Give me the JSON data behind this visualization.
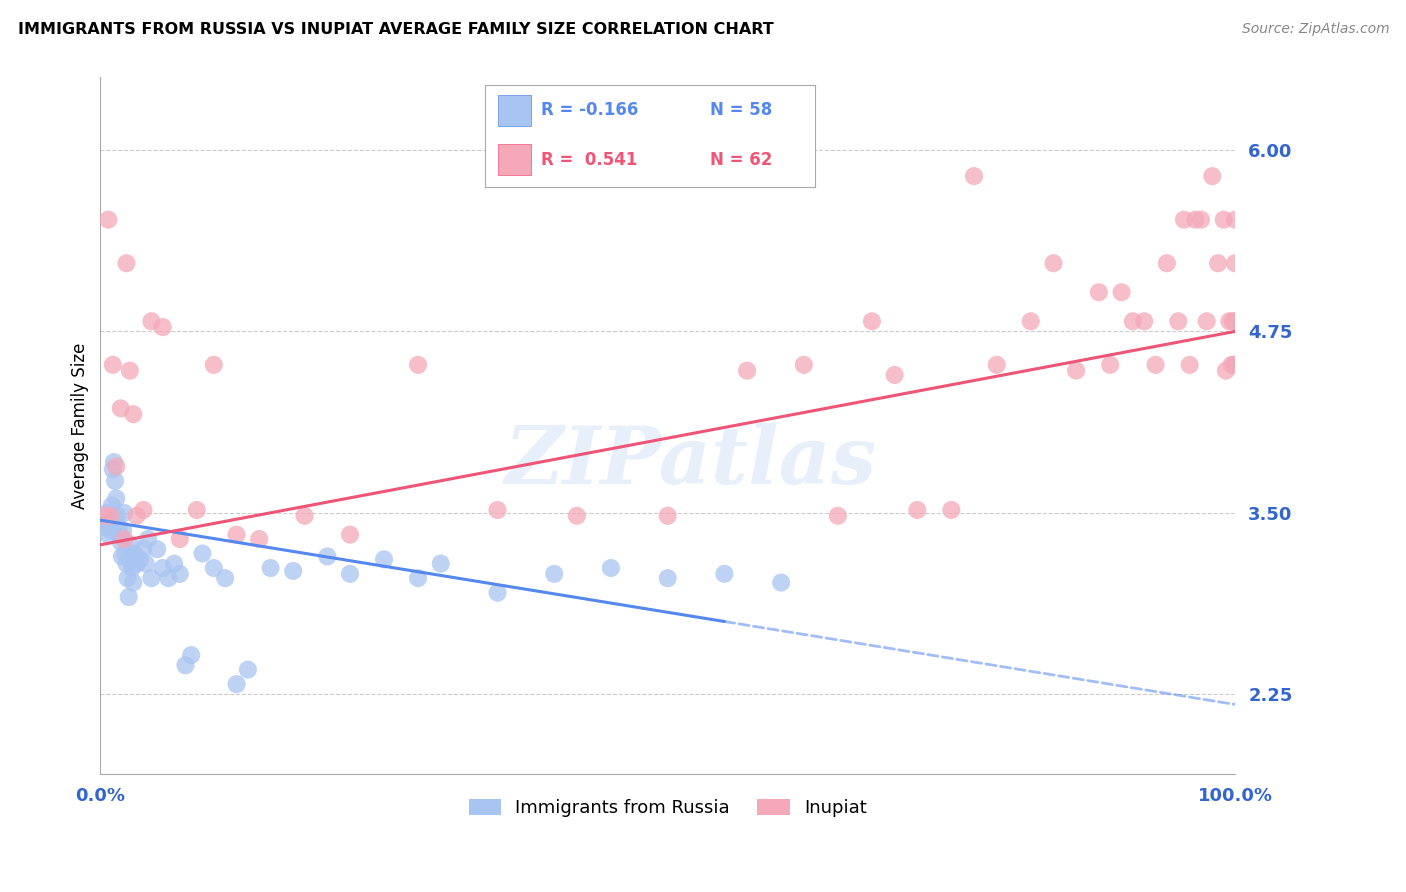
{
  "title": "IMMIGRANTS FROM RUSSIA VS INUPIAT AVERAGE FAMILY SIZE CORRELATION CHART",
  "source": "Source: ZipAtlas.com",
  "ylabel": "Average Family Size",
  "legend_label1": "Immigrants from Russia",
  "legend_label2": "Inupiat",
  "legend_r1": "R = -0.166",
  "legend_n1": "N = 58",
  "legend_r2": "R =  0.541",
  "legend_n2": "N = 62",
  "ytick_values": [
    2.25,
    3.5,
    4.75,
    6.0
  ],
  "ytick_labels": [
    "2.25",
    "3.50",
    "4.75",
    "6.00"
  ],
  "ylim": [
    1.7,
    6.5
  ],
  "xlim": [
    0,
    100
  ],
  "color_russia": "#a8c4f0",
  "color_inupiat": "#f4a8b8",
  "color_russia_line": "#5588ee",
  "color_inupiat_line": "#ee5577",
  "color_axis_text": "#3366cc",
  "color_grid": "#cccccc",
  "watermark": "ZIPatlas",
  "russia_x": [
    0.3,
    0.5,
    0.6,
    0.7,
    0.8,
    0.9,
    1.0,
    1.1,
    1.2,
    1.3,
    1.4,
    1.5,
    1.6,
    1.7,
    1.8,
    1.9,
    2.0,
    2.1,
    2.2,
    2.3,
    2.4,
    2.5,
    2.6,
    2.7,
    2.8,
    2.9,
    3.0,
    3.2,
    3.5,
    3.8,
    4.0,
    4.2,
    4.5,
    5.0,
    5.5,
    6.0,
    6.5,
    7.0,
    7.5,
    8.0,
    9.0,
    10.0,
    11.0,
    12.0,
    13.0,
    15.0,
    17.0,
    20.0,
    22.0,
    25.0,
    28.0,
    30.0,
    35.0,
    40.0,
    45.0,
    50.0,
    55.0,
    60.0
  ],
  "russia_y": [
    3.45,
    3.4,
    3.5,
    3.35,
    3.42,
    3.38,
    3.55,
    3.8,
    3.85,
    3.72,
    3.6,
    3.48,
    3.4,
    3.35,
    3.3,
    3.2,
    3.38,
    3.5,
    3.22,
    3.15,
    3.05,
    2.92,
    3.18,
    3.28,
    3.12,
    3.02,
    3.22,
    3.15,
    3.18,
    3.25,
    3.15,
    3.32,
    3.05,
    3.25,
    3.12,
    3.05,
    3.15,
    3.08,
    2.45,
    2.52,
    3.22,
    3.12,
    3.05,
    2.32,
    2.42,
    3.12,
    3.1,
    3.2,
    3.08,
    3.18,
    3.05,
    3.15,
    2.95,
    3.08,
    3.12,
    3.05,
    3.08,
    3.02
  ],
  "inupiat_x": [
    0.4,
    0.7,
    0.9,
    1.1,
    1.4,
    1.8,
    2.1,
    2.3,
    2.6,
    2.9,
    3.2,
    3.8,
    4.5,
    5.5,
    7.0,
    8.5,
    10.0,
    12.0,
    14.0,
    18.0,
    22.0,
    28.0,
    35.0,
    42.0,
    50.0,
    57.0,
    62.0,
    65.0,
    68.0,
    70.0,
    72.0,
    75.0,
    77.0,
    79.0,
    82.0,
    84.0,
    86.0,
    88.0,
    89.0,
    90.0,
    91.0,
    92.0,
    93.0,
    94.0,
    95.0,
    95.5,
    96.0,
    96.5,
    97.0,
    97.5,
    98.0,
    98.5,
    99.0,
    99.2,
    99.5,
    99.7,
    99.8,
    99.9,
    100.0,
    100.0,
    100.0,
    100.0
  ],
  "inupiat_y": [
    3.48,
    5.52,
    3.48,
    4.52,
    3.82,
    4.22,
    3.32,
    5.22,
    4.48,
    4.18,
    3.48,
    3.52,
    4.82,
    4.78,
    3.32,
    3.52,
    4.52,
    3.35,
    3.32,
    3.48,
    3.35,
    4.52,
    3.52,
    3.48,
    3.48,
    4.48,
    4.52,
    3.48,
    4.82,
    4.45,
    3.52,
    3.52,
    5.82,
    4.52,
    4.82,
    5.22,
    4.48,
    5.02,
    4.52,
    5.02,
    4.82,
    4.82,
    4.52,
    5.22,
    4.82,
    5.52,
    4.52,
    5.52,
    5.52,
    4.82,
    5.82,
    5.22,
    5.52,
    4.48,
    4.82,
    4.52,
    4.82,
    4.52,
    4.82,
    4.52,
    5.22,
    5.52
  ],
  "russia_line_x0": 0,
  "russia_line_x1": 100,
  "russia_line_y0": 3.45,
  "russia_line_y1": 2.18,
  "russia_solid_end": 55,
  "inupiat_line_x0": 0,
  "inupiat_line_x1": 100,
  "inupiat_line_y0": 3.28,
  "inupiat_line_y1": 4.75
}
